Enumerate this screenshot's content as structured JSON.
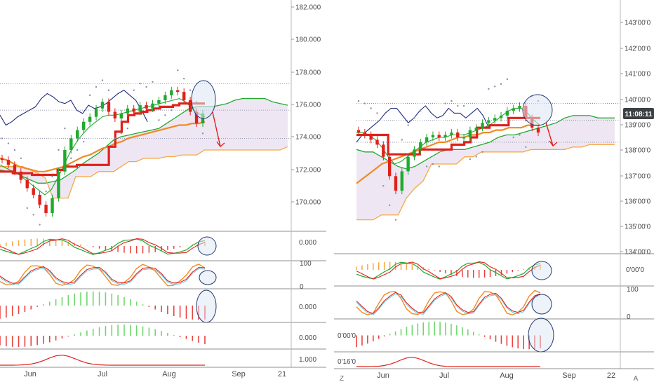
{
  "colors": {
    "red": "#e0201b",
    "orange": "#f08a24",
    "lightorange": "#f7a745",
    "green": "#1faa2e",
    "lightgreen": "#6fdc4e",
    "navy": "#1e2a7c",
    "cloud": "#ece4f2",
    "sar": "#8a8fa8",
    "cyan": "#58c3dd",
    "histgreen": "#6ed86a",
    "histred": "#e8433e",
    "circle_fill": "#dde6f4",
    "circle_stroke": "#243a72",
    "badge": "#3c4043"
  },
  "left_panel": {
    "price_axis": [
      "182.000",
      "180.000",
      "178.000",
      "176.000",
      "174.000",
      "172.000",
      "170.000"
    ],
    "months": [
      "Jun",
      "Jul",
      "Aug",
      "Sep",
      "21"
    ],
    "indicator_labels": [
      "0.000",
      "100",
      "0",
      "0.000",
      "0.000",
      "1.000"
    ]
  },
  "right_panel": {
    "price_axis": [
      "143'00'0",
      "142'00'0",
      "141'00'0",
      "140'00'0",
      "139'00'0",
      "138'00'0",
      "137'00'0",
      "136'00'0",
      "135'00'0",
      "134'00'0"
    ],
    "time_badge": "11:08:11",
    "months": [
      "Jun",
      "Jul",
      "Aug",
      "Sep",
      "22"
    ],
    "indicator_labels": [
      "0'00'0",
      "100",
      "0",
      "0'00'0",
      "0'16'0"
    ],
    "corner_left": "Z",
    "corner_right": "A"
  },
  "chart_data": [
    {
      "type": "line",
      "panel": "left",
      "y_axis_range": [
        169,
        182.6
      ],
      "x_labels": [
        "Jun",
        "Jul",
        "Aug",
        "Sep",
        "21"
      ],
      "series": [
        {
          "role": "close",
          "values": [
            173.3,
            173.0,
            172.6,
            172.1,
            171.6,
            171.2,
            170.6,
            170.1,
            171.0,
            172.6,
            173.9,
            174.6,
            175.1,
            175.6,
            175.9,
            176.4,
            176.8,
            176.2,
            175.8,
            176.1,
            176.4,
            176.2,
            176.6,
            176.4,
            176.7,
            176.9,
            177.2,
            177.5,
            177.4,
            176.9,
            176.2,
            175.5,
            176.1
          ]
        },
        {
          "role": "tenkan",
          "values": [
            173.0,
            172.8,
            172.6,
            172.4,
            172.1,
            171.8,
            171.5,
            171.2,
            171.5,
            172.2,
            173.0,
            173.8,
            174.4,
            174.9,
            175.3,
            175.6,
            175.9,
            176.0,
            176.0,
            176.1,
            176.2,
            176.3,
            176.4,
            176.5,
            176.6,
            176.7,
            176.8,
            176.9,
            177.0,
            176.8,
            176.4,
            176.1,
            175.9
          ]
        },
        {
          "role": "kijun",
          "values": [
            172.6,
            172.6,
            172.5,
            172.5,
            172.5,
            172.4,
            172.4,
            172.4,
            172.4,
            172.7,
            172.9,
            172.9,
            173.0,
            173.0,
            173.0,
            173.0,
            173.0,
            174.1,
            175.0,
            175.6,
            176.0,
            176.1,
            176.2,
            176.3,
            176.4,
            176.5,
            176.5,
            176.6,
            176.7,
            176.7,
            176.7,
            176.7,
            176.7
          ]
        },
        {
          "role": "sma",
          "values": [
            173.4,
            173.3,
            173.1,
            172.9,
            172.8,
            172.7,
            172.6,
            172.6,
            172.7,
            172.8,
            172.9,
            173.1,
            173.3,
            173.5,
            173.6,
            173.8,
            174.0,
            174.1,
            174.3,
            174.4,
            174.6,
            174.7,
            174.8,
            174.9,
            175.0,
            175.1,
            175.2,
            175.3,
            175.4,
            175.4,
            175.5,
            175.5,
            175.6
          ]
        },
        {
          "role": "chikou",
          "values": [
            176.0,
            175.4,
            175.6,
            175.9,
            176.1,
            176.3,
            176.5,
            177.0,
            177.3,
            177.1,
            176.8,
            176.7,
            176.9,
            176.3,
            176.1,
            176.6,
            176.4,
            176.5,
            176.7,
            177.0,
            177.3,
            177.5,
            177.2,
            176.9,
            176.3,
            175.6
          ]
        },
        {
          "role": "senkou_a",
          "values": [
            172.7,
            172.6,
            172.6,
            172.3,
            172.1,
            171.9,
            171.9,
            172.0,
            172.1,
            172.4,
            172.7,
            173.1,
            173.4,
            173.7,
            174.1,
            174.5,
            174.7,
            174.8,
            174.9,
            175.0,
            175.1,
            175.2,
            175.5,
            175.8,
            176.1,
            176.4,
            176.5,
            176.5,
            176.5,
            176.6,
            176.7,
            176.9,
            177.0,
            177.0,
            177.0,
            177.0,
            176.8,
            176.7,
            176.6
          ]
        },
        {
          "role": "senkou_b",
          "values": [
            172.9,
            172.9,
            172.9,
            172.9,
            172.7,
            172.5,
            172.2,
            171.0,
            171.0,
            171.0,
            172.3,
            172.3,
            172.3,
            172.6,
            172.6,
            172.6,
            172.9,
            173.2,
            173.2,
            173.4,
            173.4,
            173.4,
            173.5,
            173.5,
            173.6,
            173.6,
            173.6,
            173.9,
            173.9,
            173.9,
            173.9,
            173.9,
            173.9,
            173.9,
            173.9,
            173.9,
            173.9,
            173.9,
            174.1
          ]
        }
      ]
    },
    {
      "type": "line",
      "panel": "right",
      "y_axis_range": [
        134,
        143.6
      ],
      "x_labels": [
        "Jun",
        "Jul",
        "Aug",
        "Sep",
        "22"
      ],
      "series": [
        {
          "role": "close",
          "values": [
            139.0,
            138.9,
            138.7,
            138.5,
            138.0,
            137.2,
            136.6,
            137.4,
            138.0,
            138.3,
            138.6,
            138.8,
            138.9,
            138.8,
            138.9,
            139.0,
            138.8,
            138.8,
            139.1,
            139.2,
            139.4,
            139.5,
            139.6,
            139.7,
            139.9,
            140.0,
            140.1,
            139.6,
            139.2,
            139.0
          ]
        },
        {
          "role": "tenkan",
          "values": [
            139.0,
            139.0,
            138.9,
            138.7,
            138.4,
            138.0,
            137.7,
            137.8,
            138.0,
            138.2,
            138.4,
            138.6,
            138.7,
            138.8,
            138.8,
            138.9,
            138.9,
            138.9,
            139.0,
            139.1,
            139.2,
            139.3,
            139.5,
            139.7,
            139.9,
            140.0,
            140.0,
            139.8,
            139.5,
            139.3
          ]
        },
        {
          "role": "kijun",
          "values": [
            138.9,
            138.9,
            138.9,
            138.9,
            138.9,
            138.1,
            138.1,
            138.1,
            138.1,
            138.1,
            138.3,
            138.3,
            138.3,
            138.3,
            138.3,
            138.5,
            138.5,
            138.6,
            138.8,
            139.2,
            139.2,
            139.3,
            139.3,
            139.3,
            139.6,
            139.6,
            139.6,
            139.6,
            139.6,
            139.6
          ]
        },
        {
          "role": "sma",
          "values": [
            136.9,
            137.1,
            137.3,
            137.5,
            137.7,
            137.8,
            137.9,
            138.0,
            138.1,
            138.2,
            138.3,
            138.4,
            138.5,
            138.6,
            138.6,
            138.7,
            138.8,
            138.8,
            138.9,
            138.9,
            139.0,
            139.0,
            139.1,
            139.1,
            139.2,
            139.2,
            139.2,
            139.3,
            139.3,
            139.3
          ]
        },
        {
          "role": "chikou",
          "values": [
            138.6,
            138.9,
            139.1,
            139.3,
            139.5,
            139.8,
            140.0,
            140.0,
            139.7,
            139.4,
            139.6,
            139.9,
            140.1,
            139.8,
            139.6,
            139.7,
            140.0,
            139.8,
            139.8,
            139.6,
            139.8,
            140.0,
            139.7,
            139.2
          ]
        },
        {
          "role": "senkou_a",
          "values": [
            138.3,
            138.2,
            138.2,
            138.0,
            137.8,
            137.6,
            137.5,
            137.6,
            137.8,
            138.0,
            138.2,
            138.3,
            138.3,
            138.3,
            138.4,
            138.5,
            138.6,
            138.8,
            138.9,
            138.9,
            139.0,
            139.1,
            139.2,
            139.3,
            139.4,
            139.6,
            139.7,
            139.7,
            139.7,
            139.6,
            139.6,
            139.6
          ]
        },
        {
          "role": "senkou_b",
          "values": [
            135.4,
            135.4,
            135.4,
            135.6,
            135.6,
            135.6,
            136.3,
            136.7,
            137.0,
            137.7,
            137.7,
            137.7,
            137.7,
            138.0,
            138.0,
            138.2,
            138.2,
            138.2,
            138.2,
            138.2,
            138.2,
            138.3,
            138.3,
            138.3,
            138.3,
            138.3,
            138.4,
            138.4,
            138.5,
            138.5,
            138.5,
            138.5
          ]
        }
      ]
    }
  ]
}
